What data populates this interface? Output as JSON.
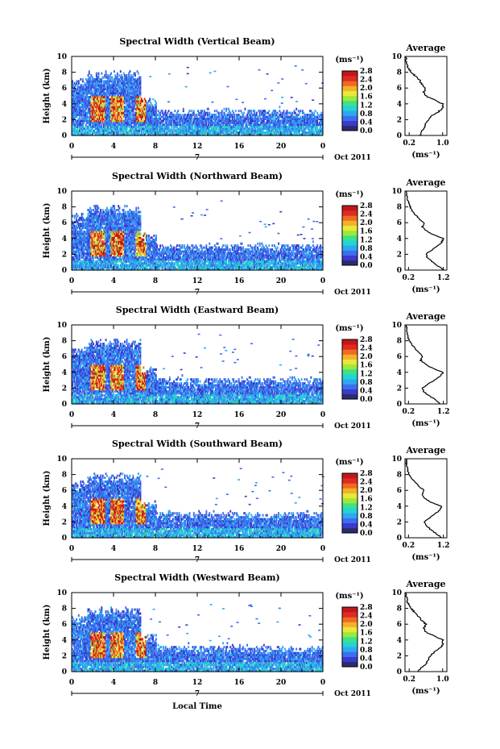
{
  "chart_data": [
    {
      "type": "heatmap",
      "title": "Spectral Width (Vertical Beam)",
      "ylabel": "Height (km)",
      "ylim": [
        0,
        10
      ],
      "yticks": [
        "0",
        "2",
        "4",
        "6",
        "8",
        "10"
      ],
      "xlim": [
        0,
        24
      ],
      "xticks": [
        "0",
        "4",
        "8",
        "12",
        "16",
        "20",
        "0"
      ],
      "date_marker": "7",
      "date_label": "Oct 2011",
      "colorbar": {
        "unit": "(ms⁻¹)",
        "range": [
          0,
          2.8
        ],
        "ticks": [
          "0.0",
          "0.4",
          "0.8",
          "1.2",
          "1.6",
          "2.0",
          "2.4",
          "2.8"
        ]
      },
      "average": {
        "title": "Average",
        "xlabel": "(ms⁻¹)",
        "xlim": [
          0.1,
          1.1
        ],
        "xticks": [
          0.2,
          1.0
        ],
        "xtick_labels": [
          "0.2",
          "1.0"
        ],
        "ylim": [
          0,
          10
        ],
        "yticks": [
          "0",
          "2",
          "4",
          "6",
          "8",
          "10"
        ],
        "profile": [
          [
            0.45,
            0
          ],
          [
            0.5,
            0.5
          ],
          [
            0.55,
            1.0
          ],
          [
            0.6,
            1.5
          ],
          [
            0.65,
            2.0
          ],
          [
            0.75,
            2.5
          ],
          [
            0.9,
            3.0
          ],
          [
            1.0,
            3.5
          ],
          [
            1.0,
            4.0
          ],
          [
            0.8,
            4.5
          ],
          [
            0.6,
            5.0
          ],
          [
            0.55,
            5.5
          ],
          [
            0.6,
            6.0
          ],
          [
            0.5,
            6.5
          ],
          [
            0.45,
            7.0
          ],
          [
            0.35,
            7.5
          ],
          [
            0.25,
            8.0
          ],
          [
            0.18,
            8.5
          ],
          [
            0.15,
            9.0
          ],
          [
            0.13,
            9.5
          ],
          [
            0.12,
            10
          ]
        ]
      }
    },
    {
      "type": "heatmap",
      "title": "Spectral Width (Northward Beam)",
      "ylabel": "Height (km)",
      "ylim": [
        0,
        10
      ],
      "yticks": [
        "0",
        "2",
        "4",
        "6",
        "8",
        "10"
      ],
      "xlim": [
        0,
        24
      ],
      "xticks": [
        "0",
        "4",
        "8",
        "12",
        "16",
        "20",
        "0"
      ],
      "date_marker": "7",
      "date_label": "Oct 2011",
      "colorbar": {
        "unit": "(ms⁻¹)",
        "range": [
          0,
          2.8
        ],
        "ticks": [
          "0.0",
          "0.4",
          "0.8",
          "1.2",
          "1.6",
          "2.0",
          "2.4",
          "2.8"
        ]
      },
      "average": {
        "title": "Average",
        "xlabel": "(ms⁻¹)",
        "xlim": [
          0.1,
          1.3
        ],
        "xticks": [
          0.2,
          1.2
        ],
        "xtick_labels": [
          "0.2",
          "1.2"
        ],
        "ylim": [
          0,
          10
        ],
        "yticks": [
          "0",
          "2",
          "4",
          "6",
          "8",
          "10"
        ],
        "profile": [
          [
            1.2,
            0
          ],
          [
            1.05,
            0.5
          ],
          [
            0.9,
            1.0
          ],
          [
            0.75,
            1.5
          ],
          [
            0.7,
            2.0
          ],
          [
            0.85,
            2.5
          ],
          [
            1.0,
            3.0
          ],
          [
            1.15,
            3.5
          ],
          [
            1.2,
            4.0
          ],
          [
            0.9,
            4.5
          ],
          [
            0.7,
            5.0
          ],
          [
            0.6,
            5.5
          ],
          [
            0.65,
            6.0
          ],
          [
            0.5,
            6.5
          ],
          [
            0.4,
            7.0
          ],
          [
            0.3,
            7.5
          ],
          [
            0.25,
            8.0
          ],
          [
            0.2,
            8.5
          ],
          [
            0.17,
            9.0
          ],
          [
            0.15,
            9.5
          ],
          [
            0.15,
            10
          ]
        ]
      }
    },
    {
      "type": "heatmap",
      "title": "Spectral Width (Eastward Beam)",
      "ylabel": "Height (km)",
      "ylim": [
        0,
        10
      ],
      "yticks": [
        "0",
        "2",
        "4",
        "6",
        "8",
        "10"
      ],
      "xlim": [
        0,
        24
      ],
      "xticks": [
        "0",
        "4",
        "8",
        "12",
        "16",
        "20",
        "0"
      ],
      "date_marker": "7",
      "date_label": "Oct 2011",
      "colorbar": {
        "unit": "(ms⁻¹)",
        "range": [
          0,
          2.8
        ],
        "ticks": [
          "0.0",
          "0.4",
          "0.8",
          "1.2",
          "1.6",
          "2.0",
          "2.4",
          "2.8"
        ]
      },
      "average": {
        "title": "Average",
        "xlabel": "(ms⁻¹)",
        "xlim": [
          0.1,
          1.3
        ],
        "xticks": [
          0.2,
          1.2
        ],
        "xtick_labels": [
          "0.2",
          "1.2"
        ],
        "ylim": [
          0,
          10
        ],
        "yticks": [
          "0",
          "2",
          "4",
          "6",
          "8",
          "10"
        ],
        "profile": [
          [
            1.1,
            0
          ],
          [
            1.0,
            0.5
          ],
          [
            0.8,
            1.0
          ],
          [
            0.65,
            1.5
          ],
          [
            0.6,
            2.0
          ],
          [
            0.75,
            2.5
          ],
          [
            0.95,
            3.0
          ],
          [
            1.1,
            3.5
          ],
          [
            1.2,
            4.0
          ],
          [
            0.9,
            4.5
          ],
          [
            0.7,
            5.0
          ],
          [
            0.55,
            5.5
          ],
          [
            0.6,
            6.0
          ],
          [
            0.5,
            6.5
          ],
          [
            0.4,
            7.0
          ],
          [
            0.3,
            7.5
          ],
          [
            0.22,
            8.0
          ],
          [
            0.18,
            8.5
          ],
          [
            0.16,
            9.0
          ],
          [
            0.15,
            9.5
          ],
          [
            0.14,
            10
          ]
        ]
      }
    },
    {
      "type": "heatmap",
      "title": "Spectral Width (Southward Beam)",
      "ylabel": "Height (km)",
      "ylim": [
        0,
        10
      ],
      "yticks": [
        "0",
        "2",
        "4",
        "6",
        "8",
        "10"
      ],
      "xlim": [
        0,
        24
      ],
      "xticks": [
        "0",
        "4",
        "8",
        "12",
        "16",
        "20",
        "0"
      ],
      "date_marker": "7",
      "date_label": "Oct 2011",
      "colorbar": {
        "unit": "(ms⁻¹)",
        "range": [
          0,
          2.8
        ],
        "ticks": [
          "0.0",
          "0.4",
          "0.8",
          "1.2",
          "1.6",
          "2.0",
          "2.4",
          "2.8"
        ]
      },
      "average": {
        "title": "Average",
        "xlabel": "(ms⁻¹)",
        "xlim": [
          0.1,
          1.3
        ],
        "xticks": [
          0.2,
          1.2
        ],
        "xtick_labels": [
          "0.2",
          "1.2"
        ],
        "ylim": [
          0,
          10
        ],
        "yticks": [
          "0",
          "2",
          "4",
          "6",
          "8",
          "10"
        ],
        "profile": [
          [
            1.15,
            0
          ],
          [
            1.0,
            0.5
          ],
          [
            0.85,
            1.0
          ],
          [
            0.7,
            1.5
          ],
          [
            0.65,
            2.0
          ],
          [
            0.8,
            2.5
          ],
          [
            0.95,
            3.0
          ],
          [
            1.1,
            3.5
          ],
          [
            1.15,
            4.0
          ],
          [
            0.85,
            4.5
          ],
          [
            0.65,
            5.0
          ],
          [
            0.6,
            5.5
          ],
          [
            0.65,
            6.0
          ],
          [
            0.5,
            6.5
          ],
          [
            0.4,
            7.0
          ],
          [
            0.3,
            7.5
          ],
          [
            0.22,
            8.0
          ],
          [
            0.18,
            8.5
          ],
          [
            0.15,
            9.0
          ],
          [
            0.14,
            9.5
          ],
          [
            0.13,
            10
          ]
        ]
      }
    },
    {
      "type": "heatmap",
      "title": "Spectral Width (Westward Beam)",
      "ylabel": "Height (km)",
      "ylim": [
        0,
        10
      ],
      "yticks": [
        "0",
        "2",
        "4",
        "6",
        "8",
        "10"
      ],
      "xlim": [
        0,
        24
      ],
      "xticks": [
        "0",
        "4",
        "8",
        "12",
        "16",
        "20",
        "0"
      ],
      "date_marker": "7",
      "date_label": "Oct 2011",
      "colorbar": {
        "unit": "(ms⁻¹)",
        "range": [
          0,
          2.8
        ],
        "ticks": [
          "0.0",
          "0.4",
          "0.8",
          "1.2",
          "1.6",
          "2.0",
          "2.4",
          "2.8"
        ]
      },
      "average": {
        "title": "Average",
        "xlabel": "(ms⁻¹)",
        "xlim": [
          0.1,
          1.1
        ],
        "xticks": [
          0.2,
          1.0
        ],
        "xtick_labels": [
          "0.2",
          "1.0"
        ],
        "ylim": [
          0,
          10
        ],
        "yticks": [
          "0",
          "2",
          "4",
          "6",
          "8",
          "10"
        ],
        "profile": [
          [
            0.4,
            0
          ],
          [
            0.5,
            0.5
          ],
          [
            0.6,
            1.0
          ],
          [
            0.65,
            1.5
          ],
          [
            0.7,
            2.0
          ],
          [
            0.8,
            2.5
          ],
          [
            0.95,
            3.0
          ],
          [
            1.0,
            3.5
          ],
          [
            1.0,
            4.0
          ],
          [
            0.8,
            4.5
          ],
          [
            0.6,
            5.0
          ],
          [
            0.55,
            5.5
          ],
          [
            0.6,
            6.0
          ],
          [
            0.5,
            6.5
          ],
          [
            0.42,
            7.0
          ],
          [
            0.33,
            7.5
          ],
          [
            0.25,
            8.0
          ],
          [
            0.18,
            8.5
          ],
          [
            0.15,
            9.0
          ],
          [
            0.13,
            9.5
          ],
          [
            0.12,
            10
          ]
        ]
      }
    }
  ],
  "xlabel": "Local Time",
  "colormap": [
    "#2b2b6e",
    "#3a3acc",
    "#3d6ef0",
    "#2ea8f0",
    "#22d4d4",
    "#3ee08a",
    "#9ee83a",
    "#e8e83a",
    "#f5b02a",
    "#f06a22",
    "#e02a22",
    "#c01818"
  ],
  "colors": {
    "nodata": "#ffffff",
    "curve": "#000000"
  }
}
